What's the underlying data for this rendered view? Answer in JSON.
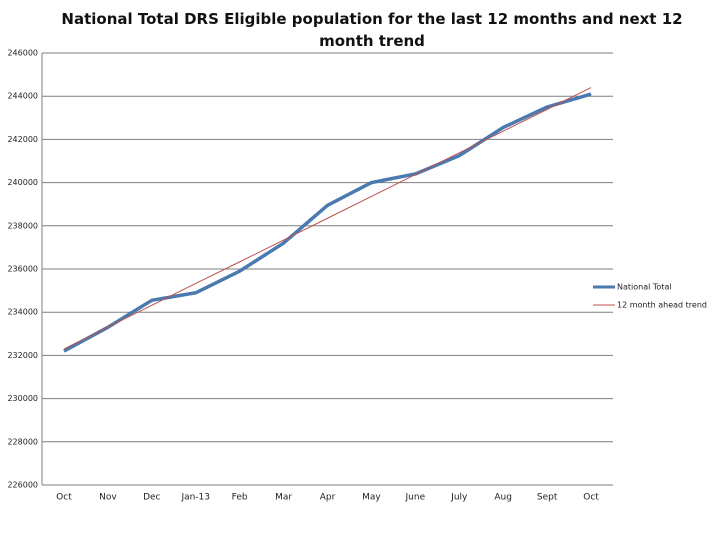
{
  "chart_data": {
    "type": "line",
    "title": "National Total DRS Eligible population for the last 12 months and next 12 month trend",
    "categories": [
      "Oct",
      "Nov",
      "Dec",
      "Jan-13",
      "Feb",
      "Mar",
      "Apr",
      "May",
      "June",
      "July",
      "Aug",
      "Sept",
      "Oct"
    ],
    "series": [
      {
        "name": "National Total",
        "color": "#4a7ab0",
        "values": [
          232200,
          233300,
          234550,
          234900,
          235900,
          237200,
          238950,
          240000,
          240400,
          241250,
          242550,
          243500,
          244100
        ]
      },
      {
        "name": "12 month ahead trend",
        "color": "#c0504d",
        "values": [
          232300,
          233310,
          234320,
          235330,
          236330,
          237340,
          238350,
          239360,
          240370,
          241380,
          242380,
          243390,
          244400
        ]
      }
    ],
    "ylim": [
      226000,
      246000
    ],
    "yticks": [
      226000,
      228000,
      230000,
      232000,
      234000,
      236000,
      238000,
      240000,
      242000,
      244000,
      246000
    ],
    "grid": true,
    "legend": "right"
  }
}
